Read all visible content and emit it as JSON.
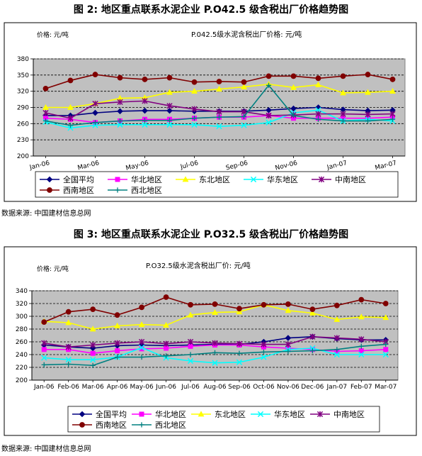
{
  "figure1": {
    "caption": "图 2: 地区重点联系水泥企业 P.O42.5 级含税出厂价格趋势图",
    "source": "数据来源: 中国建材信息总网"
  },
  "figure2": {
    "caption": "图 3: 地区重点联系水泥企业 P.O32.5 级含税出厂价格趋势图",
    "source": "数据来源: 中国建材信息总网"
  },
  "chart_data": [
    {
      "type": "line",
      "title": "P.042.5级水泥含税出厂价格: 元/吨",
      "unit_label": "价格: 元/吨",
      "xlabel": "",
      "ylabel": "",
      "ylim": [
        200,
        380
      ],
      "yticks": [
        200,
        230,
        260,
        290,
        320,
        350,
        380
      ],
      "grid": true,
      "legend_position": "bottom",
      "x_tick_labels": [
        "Jan-06",
        "Mar-06",
        "May-06",
        "Jul-06",
        "Sep-06",
        "Nov-06",
        "Jan-07",
        "Mar-07"
      ],
      "x": [
        "Jan-06",
        "Feb-06",
        "Mar-06",
        "Apr-06",
        "May-06",
        "Jun-06",
        "Jul-06",
        "Aug-06",
        "Sep-06",
        "Oct-06",
        "Nov-06",
        "Dec-06",
        "Jan-07",
        "Feb-07",
        "Mar-07"
      ],
      "series": [
        {
          "name": "全国平均",
          "color": "#000080",
          "marker": "diamond",
          "values": [
            275,
            275,
            280,
            283,
            284,
            284,
            283,
            283,
            283,
            285,
            288,
            290,
            286,
            284,
            285
          ]
        },
        {
          "name": "华北地区",
          "color": "#ff00ff",
          "marker": "square",
          "values": [
            270,
            268,
            262,
            265,
            268,
            268,
            270,
            272,
            272,
            275,
            270,
            270,
            270,
            270,
            272
          ]
        },
        {
          "name": "东北地区",
          "color": "#ffff00",
          "marker": "triangle",
          "values": [
            290,
            290,
            297,
            307,
            308,
            318,
            320,
            324,
            328,
            333,
            327,
            332,
            317,
            318,
            320
          ]
        },
        {
          "name": "华东地区",
          "color": "#00ffff",
          "marker": "x",
          "values": [
            263,
            252,
            257,
            258,
            258,
            258,
            258,
            255,
            257,
            262,
            280,
            285,
            265,
            268,
            265
          ]
        },
        {
          "name": "中南地区",
          "color": "#800080",
          "marker": "star",
          "values": [
            280,
            270,
            297,
            300,
            302,
            293,
            287,
            282,
            282,
            275,
            276,
            278,
            278,
            277,
            278
          ]
        },
        {
          "name": "西南地区",
          "color": "#800000",
          "marker": "circle",
          "values": [
            325,
            340,
            351,
            345,
            342,
            345,
            337,
            338,
            337,
            348,
            348,
            344,
            348,
            351,
            342
          ]
        },
        {
          "name": "西北地区",
          "color": "#008080",
          "marker": "plus",
          "values": [
            265,
            257,
            262,
            265,
            266,
            266,
            270,
            272,
            273,
            331,
            275,
            268,
            265,
            265,
            268
          ]
        }
      ]
    },
    {
      "type": "line",
      "title": "P.O32.5级水泥含税出厂价: 元/吨",
      "unit_label": "价格: 元/吨",
      "xlabel": "",
      "ylabel": "",
      "ylim": [
        200,
        340
      ],
      "yticks": [
        200,
        220,
        240,
        260,
        280,
        300,
        320,
        340
      ],
      "grid": true,
      "legend_position": "bottom",
      "x_tick_labels": [
        "Jan-06",
        "Feb-06",
        "Mar-06",
        "Apr-06",
        "May-06",
        "Jun-06",
        "Jul-06",
        "Aug-06",
        "Sep-06",
        "Oct-06",
        "Nov-06",
        "Dec-06",
        "Jan-07",
        "Feb-07",
        "Mar-07"
      ],
      "x": [
        "Jan-06",
        "Feb-06",
        "Mar-06",
        "Apr-06",
        "May-06",
        "Jun-06",
        "Jul-06",
        "Aug-06",
        "Sep-06",
        "Oct-06",
        "Nov-06",
        "Dec-06",
        "Jan-07",
        "Feb-07",
        "Mar-07"
      ],
      "series": [
        {
          "name": "全国平均",
          "color": "#000080",
          "marker": "diamond",
          "values": [
            255,
            252,
            250,
            254,
            255,
            254,
            255,
            256,
            256,
            260,
            266,
            268,
            265,
            263,
            263
          ]
        },
        {
          "name": "华北地区",
          "color": "#ff00ff",
          "marker": "square",
          "values": [
            248,
            248,
            242,
            246,
            249,
            250,
            253,
            255,
            255,
            252,
            250,
            248,
            245,
            246,
            248
          ]
        },
        {
          "name": "东北地区",
          "color": "#ffff00",
          "marker": "triangle",
          "values": [
            292,
            290,
            280,
            285,
            287,
            286,
            302,
            306,
            307,
            318,
            309,
            305,
            295,
            299,
            298
          ]
        },
        {
          "name": "华东地区",
          "color": "#00ffff",
          "marker": "x",
          "values": [
            235,
            232,
            232,
            236,
            251,
            235,
            230,
            227,
            228,
            236,
            248,
            250,
            240,
            240,
            240
          ]
        },
        {
          "name": "中南地区",
          "color": "#800080",
          "marker": "star",
          "values": [
            258,
            252,
            255,
            258,
            260,
            257,
            260,
            258,
            257,
            256,
            256,
            268,
            266,
            264,
            260
          ]
        },
        {
          "name": "西南地区",
          "color": "#800000",
          "marker": "circle",
          "values": [
            291,
            307,
            311,
            302,
            314,
            330,
            318,
            319,
            312,
            318,
            319,
            311,
            317,
            326,
            320
          ]
        },
        {
          "name": "西北地区",
          "color": "#008080",
          "marker": "plus",
          "values": [
            224,
            225,
            223,
            236,
            236,
            238,
            240,
            243,
            242,
            244,
            245,
            246,
            248,
            253,
            256
          ]
        }
      ]
    }
  ]
}
